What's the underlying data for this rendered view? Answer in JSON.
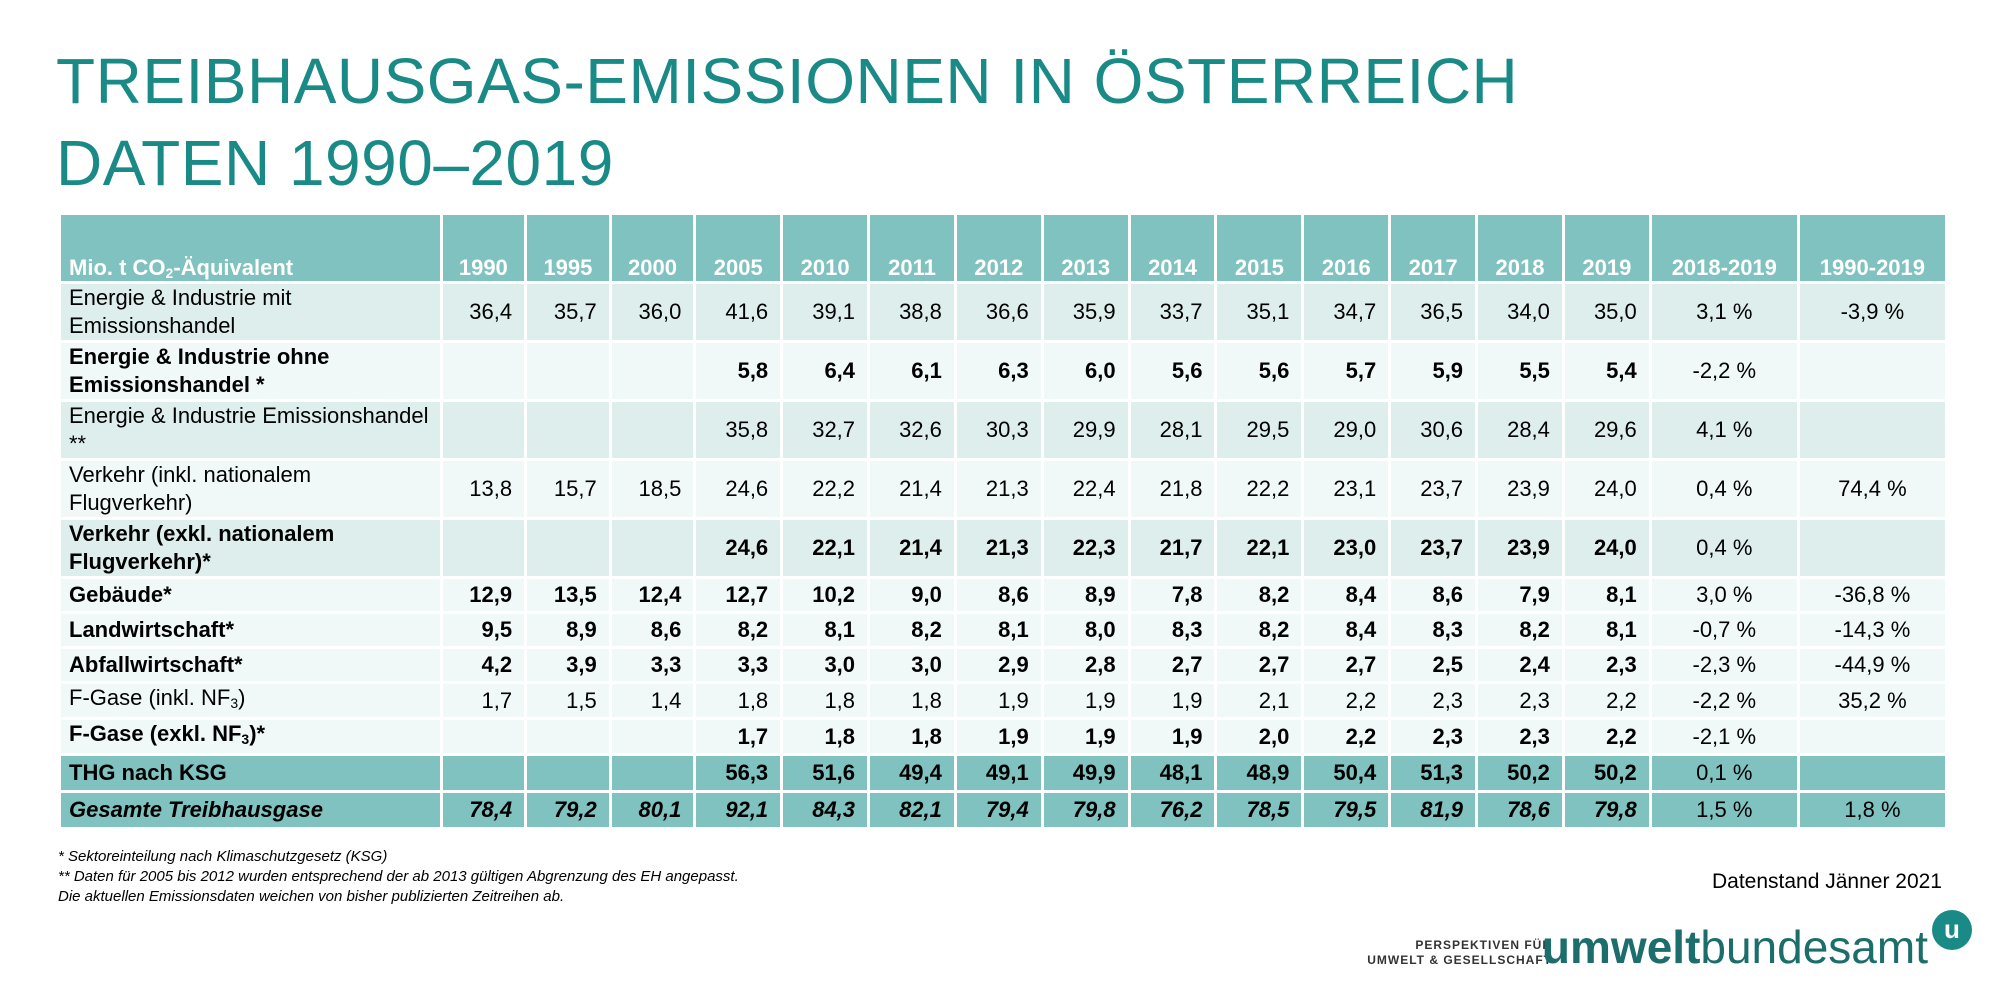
{
  "title": {
    "line1": "TREIBHAUSGAS-EMISSIONEN IN ÖSTERREICH",
    "line2": "DATEN 1990–2019"
  },
  "table": {
    "header_label_prefix": "Mio. t CO",
    "header_label_sub": "2",
    "header_label_suffix": "-Äquivalent",
    "columns": [
      "1990",
      "1995",
      "2000",
      "2005",
      "2010",
      "2011",
      "2012",
      "2013",
      "2014",
      "2015",
      "2016",
      "2017",
      "2018",
      "2019",
      "2018-2019",
      "1990-2019"
    ],
    "rows": [
      {
        "label": "Energie & Industrie mit Emissionshandel",
        "values": [
          "36,4",
          "35,7",
          "36,0",
          "41,6",
          "39,1",
          "38,8",
          "36,6",
          "35,9",
          "33,7",
          "35,1",
          "34,7",
          "36,5",
          "34,0",
          "35,0",
          "3,1 %",
          "-3,9 %"
        ]
      },
      {
        "label": "Energie & Industrie ohne Emissionshandel *",
        "values": [
          "",
          "",
          "",
          "5,8",
          "6,4",
          "6,1",
          "6,3",
          "6,0",
          "5,6",
          "5,6",
          "5,7",
          "5,9",
          "5,5",
          "5,4",
          "-2,2 %",
          ""
        ]
      },
      {
        "label": "Energie & Industrie Emissionshandel **",
        "values": [
          "",
          "",
          "",
          "35,8",
          "32,7",
          "32,6",
          "30,3",
          "29,9",
          "28,1",
          "29,5",
          "29,0",
          "30,6",
          "28,4",
          "29,6",
          "4,1 %",
          ""
        ]
      },
      {
        "label": "Verkehr (inkl. nationalem Flugverkehr)",
        "values": [
          "13,8",
          "15,7",
          "18,5",
          "24,6",
          "22,2",
          "21,4",
          "21,3",
          "22,4",
          "21,8",
          "22,2",
          "23,1",
          "23,7",
          "23,9",
          "24,0",
          "0,4 %",
          "74,4 %"
        ]
      },
      {
        "label": "Verkehr (exkl. nationalem Flugverkehr)*",
        "values": [
          "",
          "",
          "",
          "24,6",
          "22,1",
          "21,4",
          "21,3",
          "22,3",
          "21,7",
          "22,1",
          "23,0",
          "23,7",
          "23,9",
          "24,0",
          "0,4 %",
          ""
        ]
      },
      {
        "label": "Gebäude*",
        "values": [
          "12,9",
          "13,5",
          "12,4",
          "12,7",
          "10,2",
          "9,0",
          "8,6",
          "8,9",
          "7,8",
          "8,2",
          "8,4",
          "8,6",
          "7,9",
          "8,1",
          "3,0 %",
          "-36,8 %"
        ]
      },
      {
        "label": "Landwirtschaft*",
        "values": [
          "9,5",
          "8,9",
          "8,6",
          "8,2",
          "8,1",
          "8,2",
          "8,1",
          "8,0",
          "8,3",
          "8,2",
          "8,4",
          "8,3",
          "8,2",
          "8,1",
          "-0,7 %",
          "-14,3 %"
        ]
      },
      {
        "label": "Abfallwirtschaft*",
        "values": [
          "4,2",
          "3,9",
          "3,3",
          "3,3",
          "3,0",
          "3,0",
          "2,9",
          "2,8",
          "2,7",
          "2,7",
          "2,7",
          "2,5",
          "2,4",
          "2,3",
          "-2,3 %",
          "-44,9 %"
        ]
      },
      {
        "label": "F-Gase (inkl. NF3)",
        "values": [
          "1,7",
          "1,5",
          "1,4",
          "1,8",
          "1,8",
          "1,8",
          "1,9",
          "1,9",
          "1,9",
          "2,1",
          "2,2",
          "2,3",
          "2,3",
          "2,2",
          "-2,2 %",
          "35,2 %"
        ]
      },
      {
        "label": "F-Gase (exkl. NF3)*",
        "values": [
          "",
          "",
          "",
          "1,7",
          "1,8",
          "1,8",
          "1,9",
          "1,9",
          "1,9",
          "2,0",
          "2,2",
          "2,3",
          "2,3",
          "2,2",
          "-2,1 %",
          ""
        ]
      },
      {
        "label": "THG nach KSG",
        "values": [
          "",
          "",
          "",
          "56,3",
          "51,6",
          "49,4",
          "49,1",
          "49,9",
          "48,1",
          "48,9",
          "50,4",
          "51,3",
          "50,2",
          "50,2",
          "0,1 %",
          ""
        ]
      },
      {
        "label": "Gesamte Treibhausgase",
        "values": [
          "78,4",
          "79,2",
          "80,1",
          "92,1",
          "84,3",
          "82,1",
          "79,4",
          "79,8",
          "76,2",
          "78,5",
          "79,5",
          "81,9",
          "78,6",
          "79,8",
          "1,5 %",
          "1,8 %"
        ]
      }
    ]
  },
  "footnotes": [
    "* Sektoreinteilung nach Klimaschutzgesetz  (KSG)",
    "** Daten für 2005 bis 2012 wurden entsprechend der ab 2013 gültigen Abgrenzung des EH angepasst.",
    "Die aktuellen Emissionsdaten weichen von bisher publizierten Zeitreihen ab."
  ],
  "datenstand": "Datenstand Jänner 2021",
  "logo": {
    "tagline1": "PERSPEKTIVEN FÜR",
    "tagline2": "UMWELT & GESELLSCHAFT",
    "word_bold": "umwelt",
    "word_regular": "bundesamt",
    "mark": "u",
    "brand_color": "#1a8a86"
  },
  "colors": {
    "header": "#7fc2bf",
    "row_light": "#ddeeed",
    "row_white": "#f1f8f8",
    "title": "#1a8a86"
  }
}
